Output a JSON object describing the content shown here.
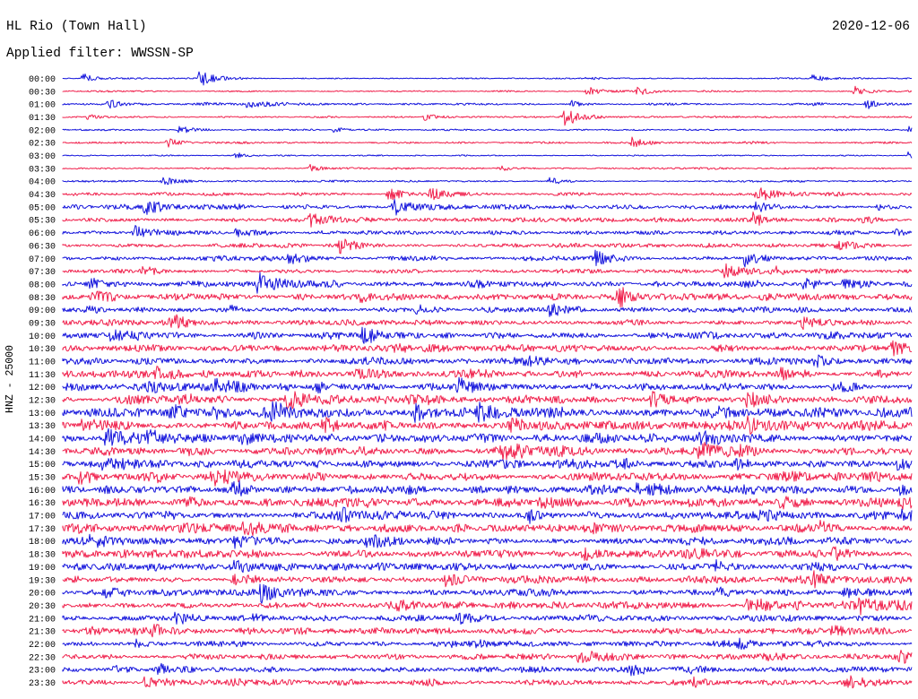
{
  "chart_data": {
    "type": "line",
    "title": "HL Rio (Town Hall)",
    "date": "2020-12-06",
    "subtitle": "Applied filter: WWSSN-SP",
    "ylabel": "HNZ - 25000",
    "grid": false,
    "legend": "none",
    "xlim": [
      0,
      30
    ],
    "series_colors": [
      "#1414dc",
      "#f0204c"
    ],
    "categories": [
      "00:00",
      "00:30",
      "01:00",
      "01:30",
      "02:00",
      "02:30",
      "03:00",
      "03:30",
      "04:00",
      "04:30",
      "05:00",
      "05:30",
      "06:00",
      "06:30",
      "07:00",
      "07:30",
      "08:00",
      "08:30",
      "09:00",
      "09:30",
      "10:00",
      "10:30",
      "11:00",
      "11:30",
      "12:00",
      "12:30",
      "13:00",
      "13:30",
      "14:00",
      "14:30",
      "15:00",
      "15:30",
      "16:00",
      "16:30",
      "17:00",
      "17:30",
      "18:00",
      "18:30",
      "19:00",
      "19:30",
      "20:00",
      "20:30",
      "21:00",
      "21:30",
      "22:00",
      "22:30",
      "23:00",
      "23:30"
    ],
    "series": [
      {
        "noise": 0.5,
        "events": [
          [
            0.7,
            5
          ],
          [
            4.8,
            8
          ],
          [
            26.5,
            4
          ]
        ]
      },
      {
        "noise": 0.6,
        "events": [
          [
            18.5,
            5
          ],
          [
            20.3,
            4
          ],
          [
            28.0,
            5
          ]
        ]
      },
      {
        "noise": 0.8,
        "events": [
          [
            1.6,
            5
          ],
          [
            6.5,
            4
          ],
          [
            18.0,
            3
          ],
          [
            28.4,
            5
          ]
        ]
      },
      {
        "noise": 0.6,
        "events": [
          [
            0.9,
            3
          ],
          [
            12.8,
            4
          ],
          [
            17.7,
            9
          ]
        ]
      },
      {
        "noise": 0.6,
        "events": [
          [
            4.1,
            4
          ],
          [
            9.6,
            3
          ],
          [
            29.9,
            3
          ]
        ]
      },
      {
        "noise": 0.7,
        "events": [
          [
            3.7,
            5
          ],
          [
            20.1,
            5
          ]
        ]
      },
      {
        "noise": 0.5,
        "events": [
          [
            6.1,
            3
          ],
          [
            29.9,
            6
          ]
        ]
      },
      {
        "noise": 0.6,
        "events": [
          [
            8.7,
            4
          ],
          [
            15.4,
            3
          ]
        ]
      },
      {
        "noise": 0.7,
        "events": [
          [
            3.5,
            5
          ],
          [
            17.2,
            3
          ]
        ]
      },
      {
        "noise": 1.2,
        "events": [
          [
            11.5,
            7
          ],
          [
            13.0,
            7
          ],
          [
            24.5,
            8
          ]
        ]
      },
      {
        "noise": 1.5,
        "events": [
          [
            2.9,
            6
          ],
          [
            11.7,
            8
          ],
          [
            24.5,
            6
          ],
          [
            28.8,
            4
          ]
        ]
      },
      {
        "noise": 1.5,
        "events": [
          [
            8.7,
            9
          ],
          [
            24.4,
            6
          ],
          [
            28.3,
            5
          ]
        ]
      },
      {
        "noise": 1.5,
        "events": [
          [
            2.5,
            7
          ],
          [
            6.1,
            5
          ],
          [
            29.4,
            3
          ]
        ]
      },
      {
        "noise": 1.6,
        "events": [
          [
            9.8,
            7
          ],
          [
            27.3,
            5
          ]
        ]
      },
      {
        "noise": 1.8,
        "events": [
          [
            8.0,
            6
          ],
          [
            18.8,
            6
          ],
          [
            24.1,
            7
          ]
        ]
      },
      {
        "noise": 1.5,
        "events": [
          [
            2.8,
            5
          ],
          [
            23.4,
            8
          ],
          [
            25.1,
            5
          ]
        ]
      },
      {
        "noise": 2.2,
        "events": [
          [
            1.0,
            6
          ],
          [
            6.9,
            10
          ],
          [
            26.2,
            6
          ],
          [
            27.6,
            6
          ]
        ]
      },
      {
        "noise": 2.2,
        "events": [
          [
            1.0,
            5
          ],
          [
            10.5,
            4
          ],
          [
            19.6,
            7
          ]
        ]
      },
      {
        "noise": 2.0,
        "events": [
          [
            5.9,
            4
          ],
          [
            12.5,
            6
          ],
          [
            17.2,
            6
          ]
        ]
      },
      {
        "noise": 2.0,
        "events": [
          [
            3.8,
            6
          ],
          [
            26.1,
            6
          ]
        ]
      },
      {
        "noise": 2.2,
        "events": [
          [
            1.7,
            4
          ],
          [
            10.6,
            9
          ]
        ]
      },
      {
        "noise": 2.4,
        "events": [
          [
            11.7,
            4
          ],
          [
            29.3,
            6
          ]
        ]
      },
      {
        "noise": 2.4,
        "events": [
          [
            10.6,
            4
          ],
          [
            26.6,
            5
          ]
        ]
      },
      {
        "noise": 2.6,
        "events": [
          [
            3.3,
            6
          ],
          [
            10.4,
            5
          ],
          [
            25.3,
            6
          ]
        ]
      },
      {
        "noise": 3.0,
        "events": [
          [
            5.4,
            5
          ],
          [
            14.0,
            6
          ],
          [
            27.2,
            5
          ]
        ]
      },
      {
        "noise": 3.2,
        "events": [
          [
            7.9,
            8
          ],
          [
            20.8,
            7
          ],
          [
            24.2,
            8
          ]
        ]
      },
      {
        "noise": 3.4,
        "events": [
          [
            3.8,
            6
          ],
          [
            5.3,
            7
          ],
          [
            7.4,
            6
          ],
          [
            12.4,
            8
          ],
          [
            14.7,
            7
          ]
        ]
      },
      {
        "noise": 3.4,
        "events": [
          [
            0.7,
            8
          ],
          [
            9.2,
            6
          ],
          [
            15.8,
            7
          ],
          [
            24.1,
            7
          ]
        ]
      },
      {
        "noise": 3.4,
        "events": [
          [
            1.5,
            9
          ],
          [
            3.0,
            6
          ],
          [
            6.3,
            5
          ],
          [
            22.5,
            7
          ]
        ]
      },
      {
        "noise": 3.0,
        "events": [
          [
            15.5,
            5
          ],
          [
            22.5,
            8
          ]
        ]
      },
      {
        "noise": 3.0,
        "events": [
          [
            1.4,
            6
          ],
          [
            23.8,
            5
          ],
          [
            29.5,
            5
          ]
        ]
      },
      {
        "noise": 3.2,
        "events": [
          [
            0.6,
            7
          ],
          [
            5.3,
            7
          ]
        ]
      },
      {
        "noise": 3.4,
        "events": [
          [
            6.0,
            7
          ],
          [
            20.3,
            6
          ],
          [
            29.5,
            5
          ]
        ]
      },
      {
        "noise": 3.2,
        "events": [
          [
            16.8,
            6
          ],
          [
            29.6,
            6
          ]
        ]
      },
      {
        "noise": 3.2,
        "events": [
          [
            9.8,
            6
          ],
          [
            16.5,
            5
          ],
          [
            29.6,
            5
          ]
        ]
      },
      {
        "noise": 2.8,
        "events": [
          [
            6.4,
            8
          ],
          [
            26.7,
            5
          ]
        ]
      },
      {
        "noise": 3.0,
        "events": [
          [
            1.0,
            5
          ],
          [
            6.1,
            6
          ],
          [
            10.7,
            7
          ]
        ]
      },
      {
        "noise": 2.8,
        "events": [
          [
            18.4,
            8
          ],
          [
            27.2,
            7
          ]
        ]
      },
      {
        "noise": 2.6,
        "events": [
          [
            6.0,
            5
          ],
          [
            23.1,
            5
          ]
        ]
      },
      {
        "noise": 2.6,
        "events": [
          [
            6.0,
            6
          ],
          [
            13.5,
            6
          ],
          [
            26.5,
            6
          ]
        ]
      },
      {
        "noise": 2.4,
        "events": [
          [
            1.4,
            5
          ],
          [
            7.0,
            8
          ],
          [
            27.6,
            6
          ]
        ]
      },
      {
        "noise": 2.6,
        "events": [
          [
            24.2,
            9
          ],
          [
            28.1,
            8
          ]
        ]
      },
      {
        "noise": 2.4,
        "events": [
          [
            4.0,
            6
          ],
          [
            13.9,
            5
          ]
        ]
      },
      {
        "noise": 2.4,
        "events": [
          [
            3.2,
            6
          ],
          [
            27.2,
            5
          ]
        ]
      },
      {
        "noise": 2.0,
        "events": [
          [
            2.6,
            4
          ],
          [
            23.9,
            5
          ]
        ]
      },
      {
        "noise": 2.2,
        "events": [
          [
            18.2,
            8
          ],
          [
            29.6,
            5
          ]
        ]
      },
      {
        "noise": 2.0,
        "events": [
          [
            1.8,
            4
          ],
          [
            3.4,
            5
          ],
          [
            20.1,
            4
          ]
        ]
      },
      {
        "noise": 2.0,
        "events": [
          [
            2.9,
            5
          ],
          [
            22.3,
            4
          ],
          [
            27.7,
            8
          ]
        ]
      }
    ]
  }
}
